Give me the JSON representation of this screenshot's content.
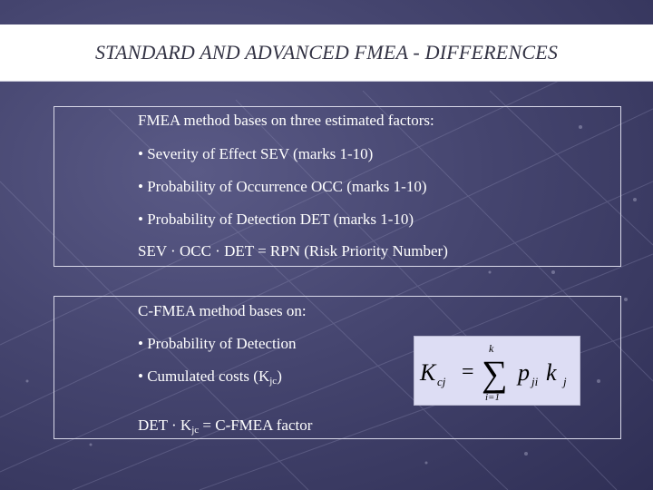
{
  "slide": {
    "title": "STANDARD AND ADVANCED FMEA - DIFFERENCES"
  },
  "box1": {
    "intro": "FMEA method bases on three estimated factors:",
    "bullets": [
      "• Severity of Effect SEV (marks 1-10)",
      "• Probability of Occurrence OCC (marks 1-10)",
      "• Probability of Detection DET (marks 1-10)"
    ],
    "equation": "SEV · OCC · DET = RPN (Risk Priority Number)"
  },
  "box2": {
    "intro": "C-FMEA method bases on:",
    "bullets": [
      "• Probability of Detection",
      "• Cumulated costs  (K"
    ],
    "cost_sub": "jc",
    "cost_close": ")",
    "det_prefix": "DET · K",
    "det_sub": "jc",
    "det_suffix": " = C-FMEA factor"
  },
  "formula": {
    "lhs_var": "K",
    "lhs_sub": "cj",
    "equals": "=",
    "sum_sign": "∑",
    "upper_limit": "k",
    "lower_limit": "i=1",
    "p_var": "p",
    "p_sub": "ji",
    "k_var": "k",
    "k_sub": "j"
  }
}
